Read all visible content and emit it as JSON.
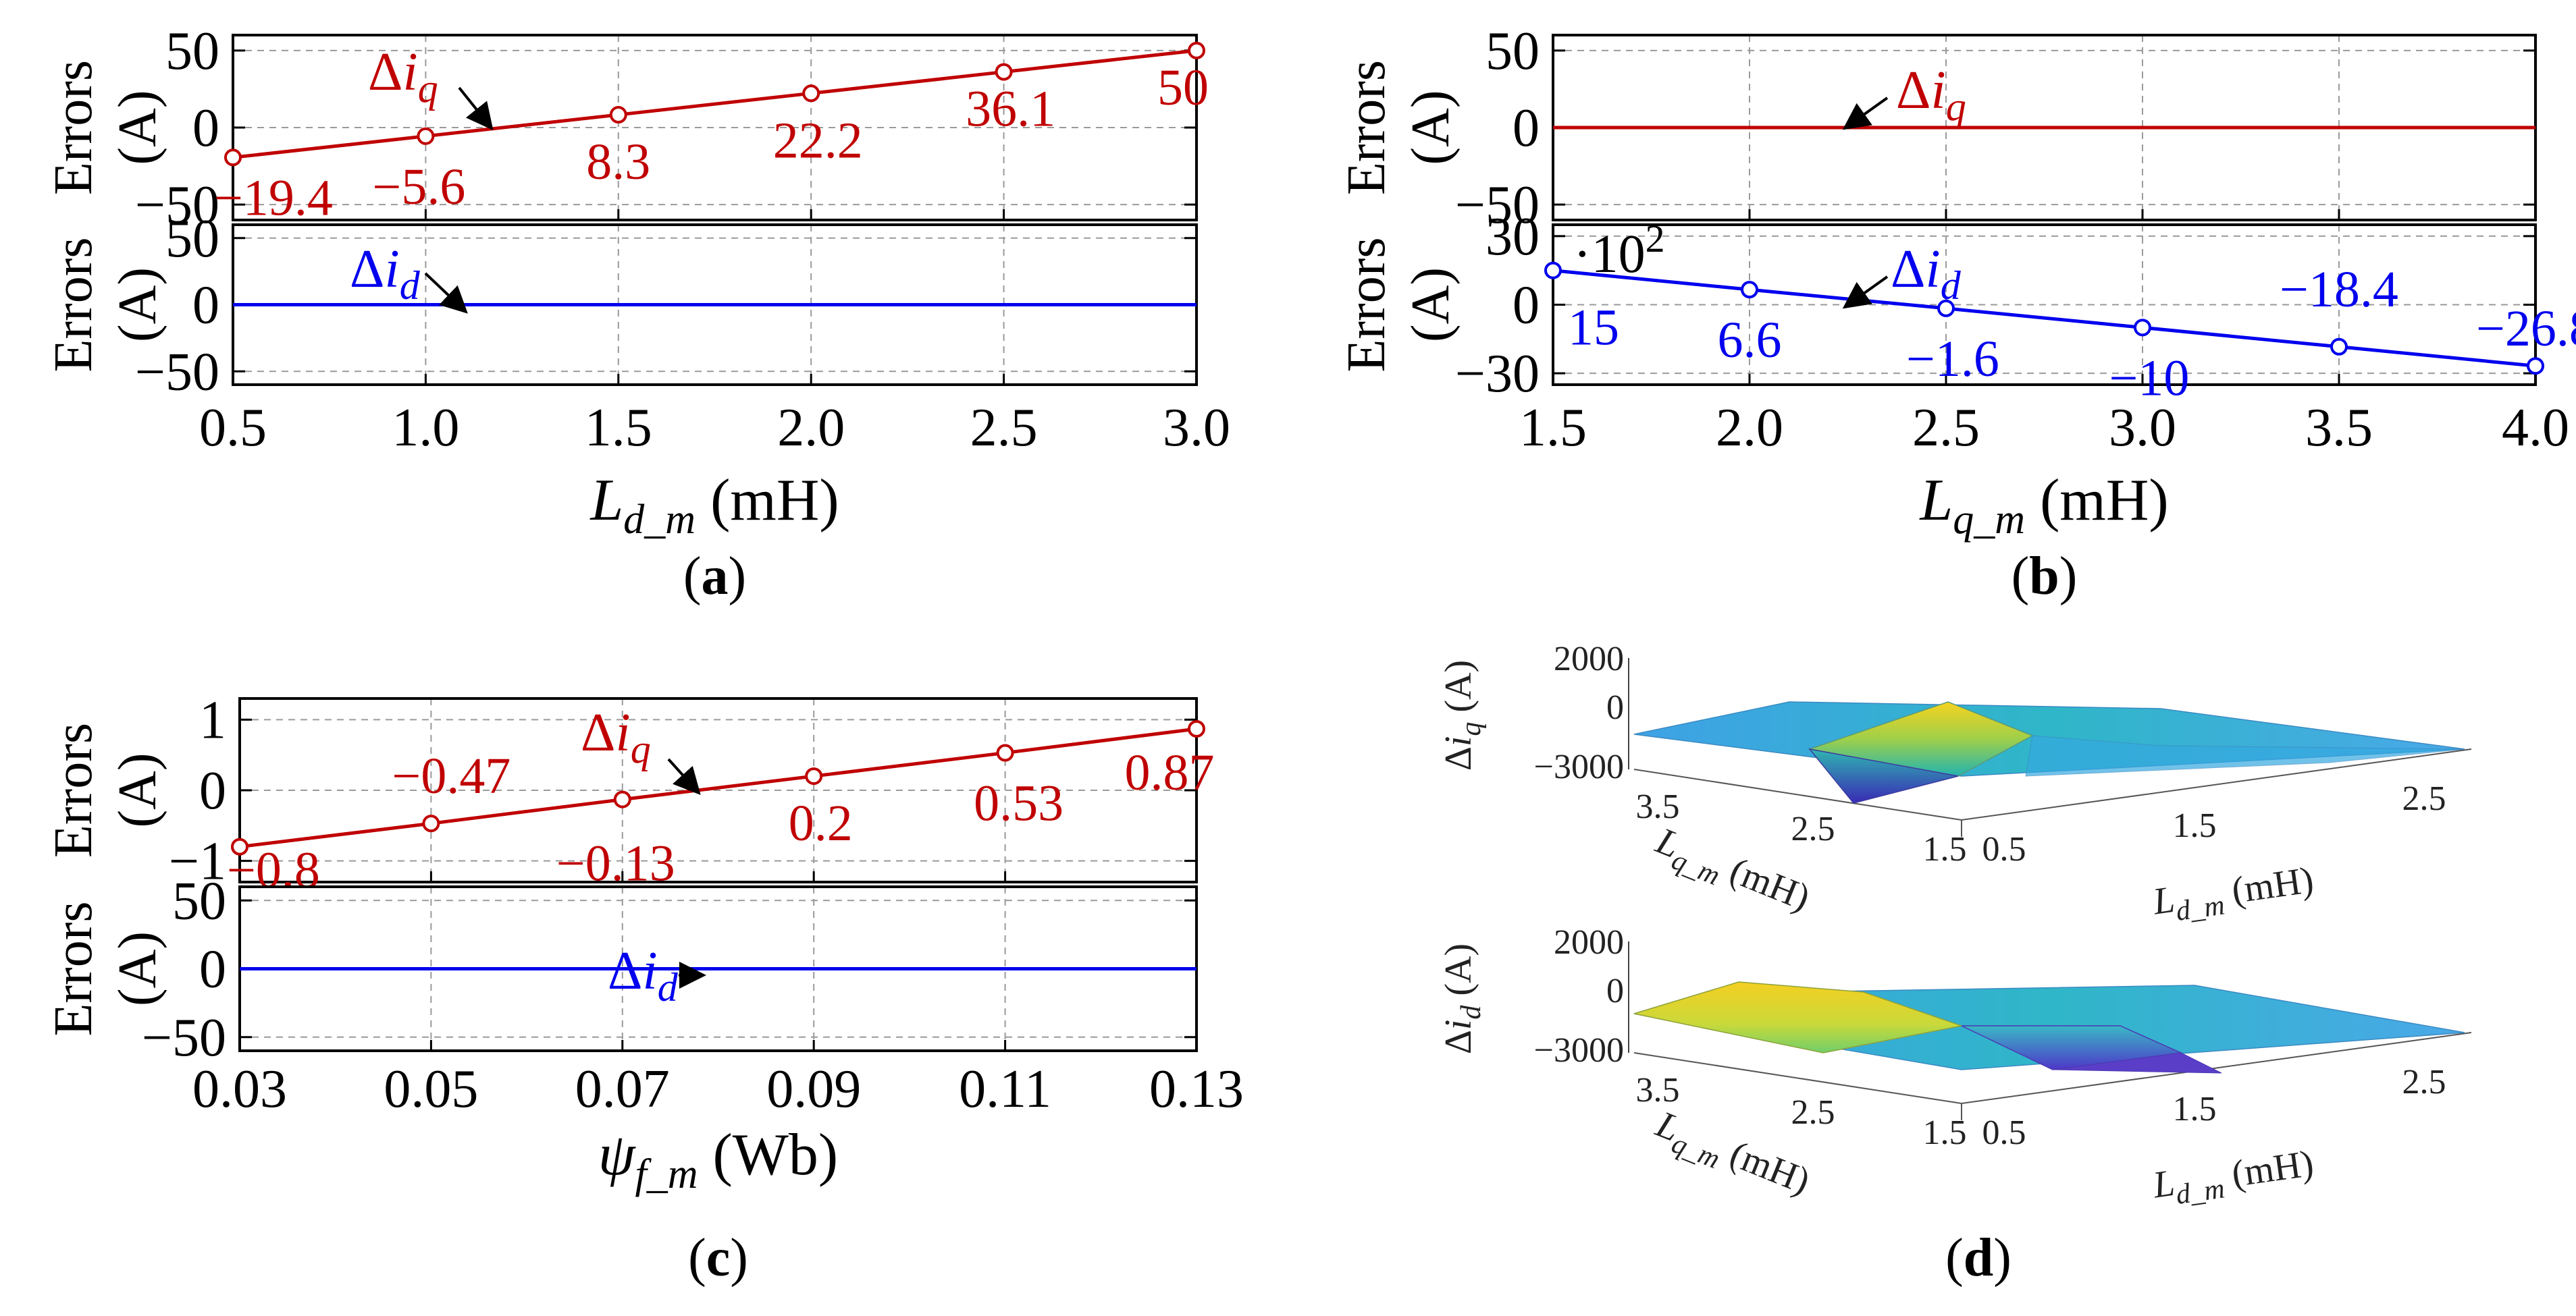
{
  "colors": {
    "iq": "#c00000",
    "id": "#0000ee",
    "grid": "#9a9a9a",
    "axis": "#000000"
  },
  "chart_data": [
    {
      "panel": "a",
      "type": "line",
      "sublabel": {
        "open": "(",
        "letter": "a",
        "close": ")"
      },
      "x": [
        0.5,
        1.0,
        1.5,
        2.0,
        2.5,
        3.0
      ],
      "xlim": [
        0.5,
        3.0
      ],
      "xticks": [
        "0.5",
        "1.0",
        "1.5",
        "2.0",
        "2.5",
        "3.0"
      ],
      "xlabel": {
        "main": "L",
        "sub": "d_m",
        "unit": "(mH)"
      },
      "top": {
        "ylabel": [
          "Errors",
          "(A)"
        ],
        "ylim": [
          -60,
          60
        ],
        "yticks": [
          50,
          0,
          -50
        ],
        "ytick_labels": [
          "50",
          "0",
          "−50"
        ],
        "annotation": {
          "delta": "Δ",
          "main": "i",
          "sub": "q"
        },
        "series": [
          {
            "values": [
              -19.4,
              -5.6,
              8.3,
              22.2,
              36.1,
              50
            ],
            "labels": [
              "−19.4",
              "−5.6",
              "8.3",
              "22.2",
              "36.1",
              "50"
            ],
            "markers": true
          }
        ]
      },
      "bottom": {
        "ylabel": [
          "Errors",
          "(A)"
        ],
        "ylim": [
          -60,
          60
        ],
        "yticks": [
          50,
          0,
          -50
        ],
        "ytick_labels": [
          "50",
          "0",
          "−50"
        ],
        "annotation": {
          "delta": "Δ",
          "main": "i",
          "sub": "d"
        },
        "series": [
          {
            "values": [
              0,
              0,
              0,
              0,
              0,
              0
            ],
            "markers": false
          }
        ]
      }
    },
    {
      "panel": "b",
      "type": "line",
      "sublabel": {
        "open": "(",
        "letter": "b",
        "close": ")"
      },
      "x": [
        1.5,
        2.0,
        2.5,
        3.0,
        3.5,
        4.0
      ],
      "xlim": [
        1.5,
        4.0
      ],
      "xticks": [
        "1.5",
        "2.0",
        "2.5",
        "3.0",
        "3.5",
        "4.0"
      ],
      "xlabel": {
        "main": "L",
        "sub": "q_m",
        "unit": "(mH)"
      },
      "top": {
        "ylabel": [
          "Errors",
          "(A)"
        ],
        "ylim": [
          -60,
          60
        ],
        "yticks": [
          50,
          0,
          -50
        ],
        "ytick_labels": [
          "50",
          "0",
          "−50"
        ],
        "annotation": {
          "delta": "Δ",
          "main": "i",
          "sub": "q"
        },
        "series": [
          {
            "values": [
              0,
              0,
              0,
              0,
              0,
              0
            ],
            "markers": false
          }
        ]
      },
      "bottom": {
        "ylabel": [
          "Errors",
          "(A)"
        ],
        "ylim": [
          -35,
          35
        ],
        "yticks": [
          30,
          0,
          -30
        ],
        "ytick_labels": [
          "30",
          "0",
          "−30"
        ],
        "scale_note": {
          "base": "·10",
          "exp": "2"
        },
        "annotation": {
          "delta": "Δ",
          "main": "i",
          "sub": "d"
        },
        "series": [
          {
            "values": [
              15,
              6.6,
              -1.6,
              -10,
              -18.4,
              -26.8
            ],
            "labels": [
              "15",
              "6.6",
              "−1.6",
              "−10",
              "−18.4",
              "−26.8"
            ],
            "markers": true
          }
        ]
      }
    },
    {
      "panel": "c",
      "type": "line",
      "sublabel": {
        "open": "(",
        "letter": "c",
        "close": ")"
      },
      "x": [
        0.03,
        0.05,
        0.07,
        0.09,
        0.11,
        0.13
      ],
      "xlim": [
        0.03,
        0.13
      ],
      "xticks": [
        "0.03",
        "0.05",
        "0.07",
        "0.09",
        "0.11",
        "0.13"
      ],
      "xlabel": {
        "main": "ψ",
        "sub": "f_m",
        "unit": "(Wb)"
      },
      "top": {
        "ylabel": [
          "Errors",
          "(A)"
        ],
        "ylim": [
          -1.3,
          1.3
        ],
        "yticks": [
          1,
          0,
          -1
        ],
        "ytick_labels": [
          "1",
          "0",
          "−1"
        ],
        "annotation": {
          "delta": "Δ",
          "main": "i",
          "sub": "q"
        },
        "series": [
          {
            "values": [
              -0.8,
              -0.47,
              -0.13,
              0.2,
              0.53,
              0.87
            ],
            "labels": [
              "−0.8",
              "−0.47",
              "−0.13",
              "0.2",
              "0.53",
              "0.87"
            ],
            "markers": true
          }
        ]
      },
      "bottom": {
        "ylabel": [
          "Errors",
          "(A)"
        ],
        "ylim": [
          -60,
          60
        ],
        "yticks": [
          50,
          0,
          -50
        ],
        "ytick_labels": [
          "50",
          "0",
          "−50"
        ],
        "annotation": {
          "delta": "Δ",
          "main": "i",
          "sub": "d"
        },
        "series": [
          {
            "values": [
              0,
              0,
              0,
              0,
              0,
              0
            ],
            "markers": false
          }
        ]
      }
    },
    {
      "panel": "d",
      "type": "surface",
      "sublabel": {
        "open": "(",
        "letter": "d",
        "close": ")"
      },
      "x_axis": {
        "main": "L",
        "sub": "d_m",
        "unit": "(mH)",
        "ticks": [
          "0.5",
          "1.5",
          "2.5"
        ]
      },
      "y_axis": {
        "main": "L",
        "sub": "q_m",
        "unit": "(mH)",
        "ticks": [
          "3.5",
          "2.5",
          "1.5"
        ]
      },
      "zlim": [
        -3000,
        2000
      ],
      "surfaces": [
        {
          "zlabel": {
            "delta": "Δ",
            "main": "i",
            "sub": "q",
            "unit": "(A)"
          },
          "zticks": [
            "2000",
            "0",
            "−3000"
          ]
        },
        {
          "zlabel": {
            "delta": "Δ",
            "main": "i",
            "sub": "d",
            "unit": "(A)"
          },
          "zticks": [
            "2000",
            "0",
            "−3000"
          ]
        }
      ]
    }
  ]
}
